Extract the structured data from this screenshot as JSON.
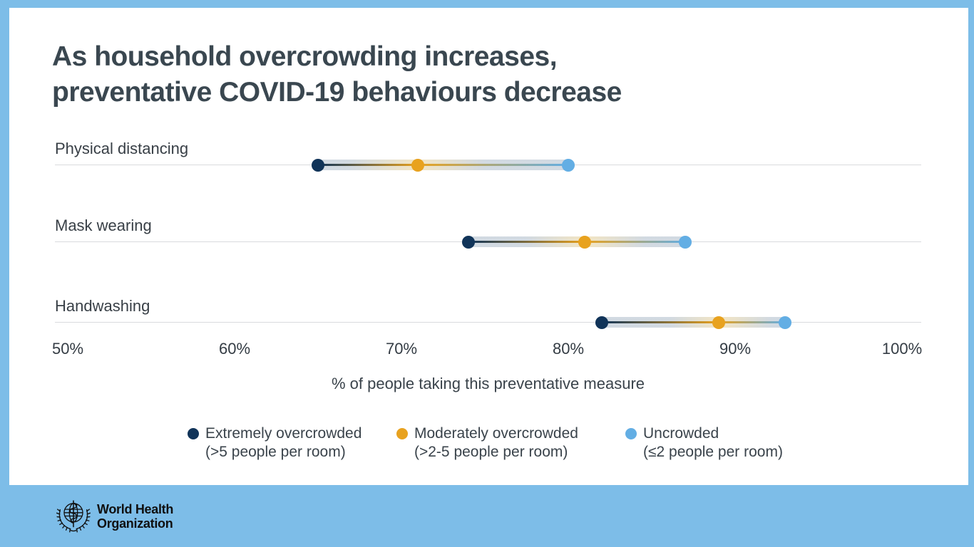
{
  "title": {
    "line1": "As household overcrowding increases,",
    "line2": "preventative COVID-19 behaviours decrease"
  },
  "chart_data": {
    "type": "dumbbell",
    "categories": [
      "Physical distancing",
      "Mask wearing",
      "Handwashing"
    ],
    "series": [
      {
        "name": "Extremely overcrowded (>5 people per room)",
        "color": "#113459",
        "values": [
          65,
          74,
          82
        ]
      },
      {
        "name": "Moderately overcrowded (>2-5 people per room)",
        "color": "#E8A21F",
        "values": [
          71,
          81,
          89
        ]
      },
      {
        "name": "Uncrowded (≤2 people per room)",
        "color": "#63AEE4",
        "values": [
          80,
          87,
          93
        ]
      }
    ],
    "x_range": [
      50,
      100
    ],
    "x_ticks": [
      "50%",
      "60%",
      "70%",
      "80%",
      "90%",
      "100%"
    ],
    "xlabel": "% of people taking this preventative measure",
    "grid": true,
    "legend_position": "bottom",
    "band_colors": {
      "base": "rgba(198,208,218,0.8)",
      "glow": "#F3E5C3"
    }
  },
  "legend": {
    "items": [
      {
        "line1": "Extremely overcrowded",
        "line2": "(>5 people per room)",
        "color": "#113459"
      },
      {
        "line1": "Moderately overcrowded",
        "line2": "(>2-5 people per room)",
        "color": "#E8A21F"
      },
      {
        "line1": "Uncrowded",
        "line2": "(≤2 people per room)",
        "color": "#63AEE4"
      }
    ]
  },
  "footer": {
    "org_line1": "World Health",
    "org_line2": "Organization"
  },
  "colors": {
    "background": "#7DBDE8",
    "card": "#FFFFFF",
    "title_text": "#3A4750",
    "gridline": "#D9DBDD"
  }
}
